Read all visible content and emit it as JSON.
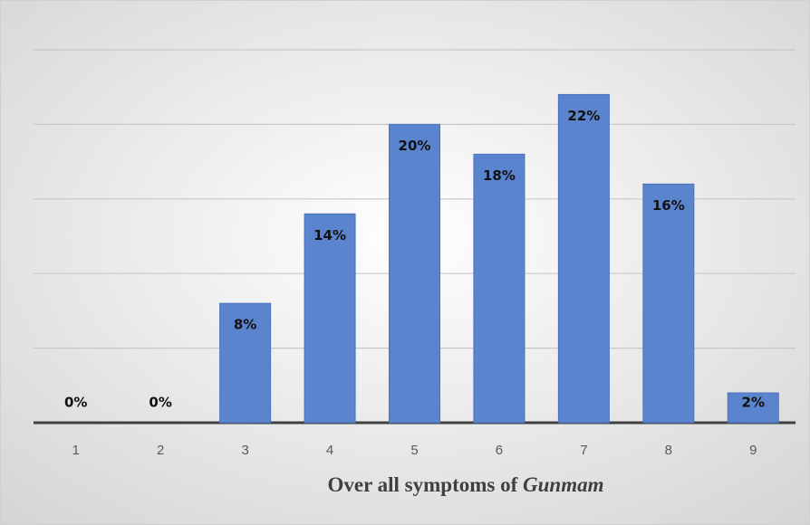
{
  "chart_data": {
    "type": "bar",
    "categories": [
      "1",
      "2",
      "3",
      "4",
      "5",
      "6",
      "7",
      "8",
      "9"
    ],
    "values": [
      0,
      0,
      8,
      14,
      20,
      18,
      22,
      16,
      2
    ],
    "value_labels": [
      "0%",
      "0%",
      "8%",
      "14%",
      "20%",
      "18%",
      "22%",
      "16%",
      "2%"
    ],
    "color": "#5b84cf",
    "x_label": "Over all symptoms of Gunmam",
    "ylim": [
      0,
      25
    ],
    "yticks": [
      0,
      5,
      10,
      15,
      20,
      25
    ],
    "grid": true
  }
}
